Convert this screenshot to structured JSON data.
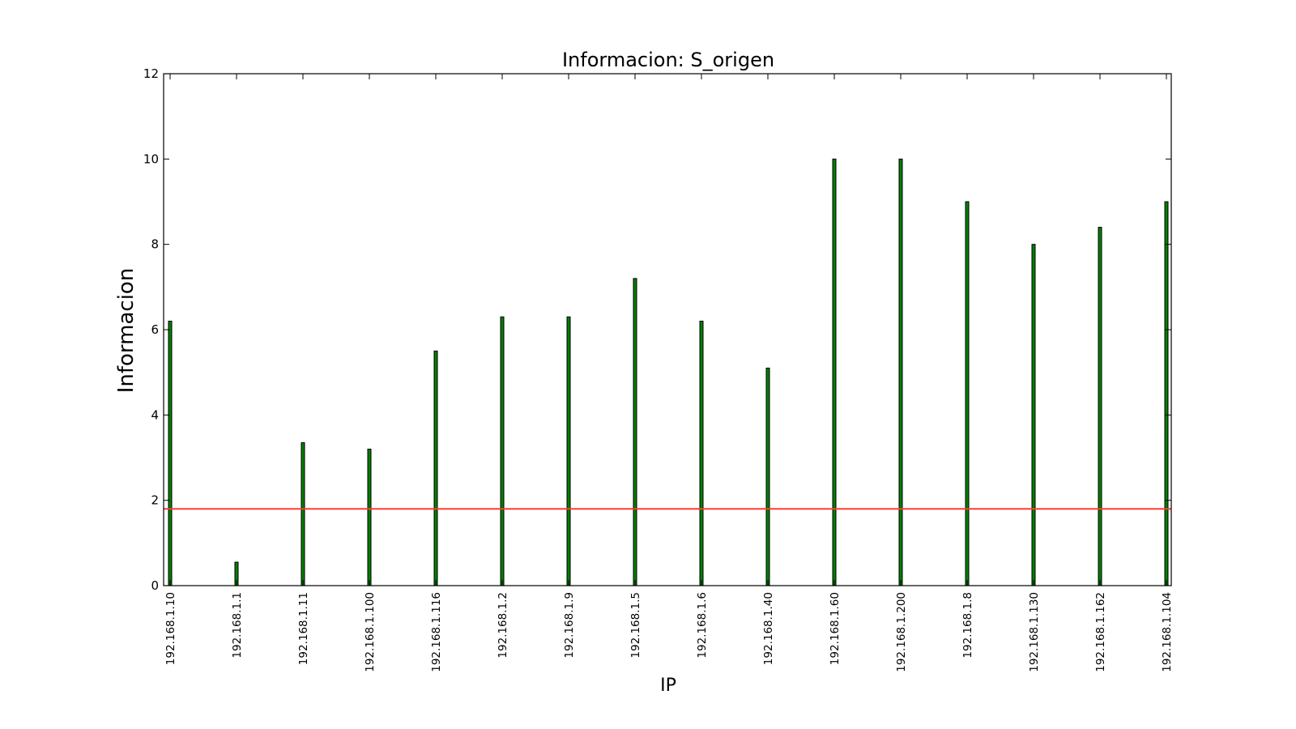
{
  "chart_data": {
    "type": "bar",
    "title": "Informacion: S_origen",
    "xlabel": "IP",
    "ylabel": "Informacion",
    "categories": [
      "192.168.1.10",
      "192.168.1.1",
      "192.168.1.11",
      "192.168.1.100",
      "192.168.1.116",
      "192.168.1.2",
      "192.168.1.9",
      "192.168.1.5",
      "192.168.1.6",
      "192.168.1.40",
      "192.168.1.60",
      "192.168.1.200",
      "192.168.1.8",
      "192.168.1.130",
      "192.168.1.162",
      "192.168.1.104"
    ],
    "values": [
      6.2,
      0.55,
      3.35,
      3.2,
      5.5,
      6.3,
      6.3,
      7.2,
      6.2,
      5.1,
      10.0,
      10.0,
      9.0,
      8.0,
      8.4,
      9.0
    ],
    "ylim": [
      0,
      12
    ],
    "yticks": [
      "0",
      "2",
      "4",
      "6",
      "8",
      "10",
      "12"
    ],
    "threshold_line": {
      "value": 1.8
    },
    "grid": false,
    "colors": {
      "bar_fill": "#008000",
      "bar_edge": "#000000",
      "threshold_line": "#ff3b30",
      "axis": "#000000"
    }
  }
}
